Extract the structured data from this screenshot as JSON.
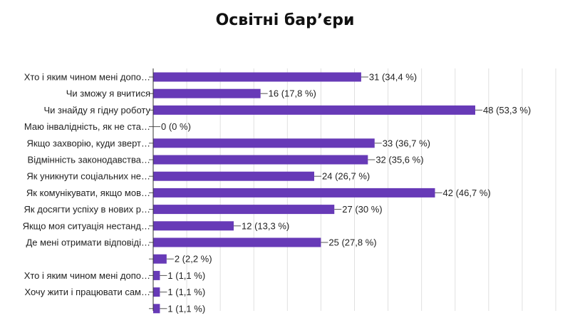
{
  "chart_data": {
    "type": "bar",
    "orientation": "horizontal",
    "title": "Освітні бар’єри",
    "categories": [
      "Хто і яким чином мені допо…",
      "Чи зможу я вчитися",
      "Чи знайду я гідну роботу",
      "Маю інвалідність, як не ста…",
      "Якщо захворію, куди зверт…",
      "Відмінність законодавства…",
      "Як уникнути соціальних не…",
      "Як комунікувати, якщо мов…",
      "Як досягти успіху в нових р…",
      "Якщо моя ситуація нестанд…",
      "Де мені отримати відповіді…",
      "",
      "Хто і яким чином мені допо…",
      "Хочу жити і працювати сам…",
      ""
    ],
    "values": [
      31,
      16,
      48,
      0,
      33,
      32,
      24,
      42,
      27,
      12,
      25,
      2,
      1,
      1,
      1
    ],
    "value_labels": [
      "31 (34,4 %)",
      "16 (17,8 %)",
      "48 (53,3 %)",
      "0 (0 %)",
      "33 (36,7 %)",
      "32 (35,6 %)",
      "24 (26,7 %)",
      "42 (46,7 %)",
      "27 (30 %)",
      "12 (13,3 %)",
      "25 (27,8 %)",
      "2 (2,2 %)",
      "1 (1,1 %)",
      "1 (1,1 %)",
      "1 (1,1 %)"
    ],
    "xlim": [
      0,
      60
    ],
    "grid": true,
    "bar_color": "#673ab7",
    "grid_color": "#e0e0e0",
    "xlabel": "",
    "ylabel": ""
  }
}
